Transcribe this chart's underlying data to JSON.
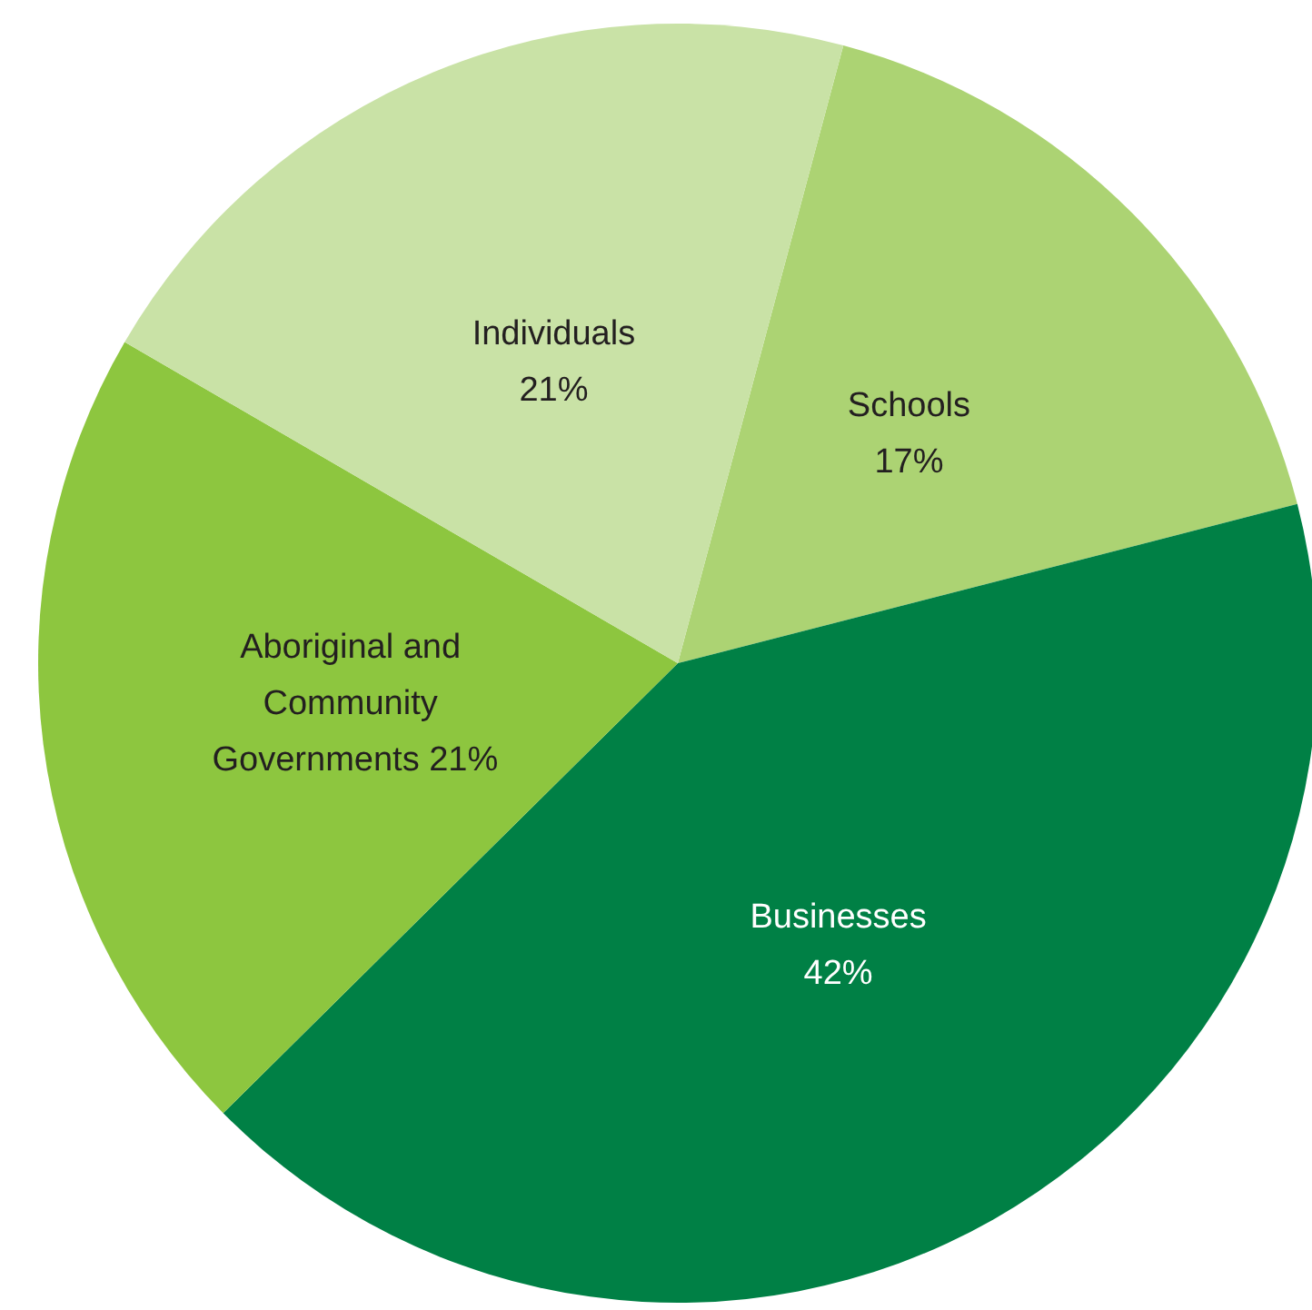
{
  "chart_data": {
    "type": "pie",
    "categories": [
      "Schools",
      "Businesses",
      "Aboriginal and Community Governments",
      "Individuals"
    ],
    "values": [
      17,
      42,
      21,
      21
    ],
    "value_labels": [
      "17%",
      "42%",
      "21%",
      "21%"
    ],
    "colors": [
      "#acd373",
      "#008045",
      "#8dc63f",
      "#c9e2a6"
    ],
    "legend": false
  }
}
